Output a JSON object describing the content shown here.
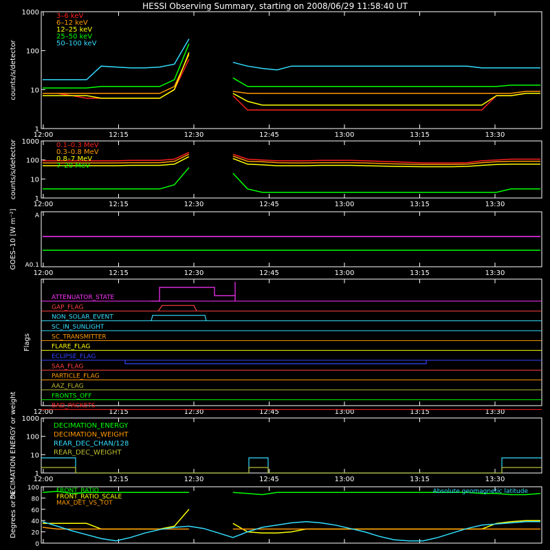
{
  "title": "HESSI Observing Summary, starting on 2008/06/29 11:58:40 UT",
  "time_ticks": [
    "12:00",
    "12:15",
    "12:30",
    "12:45",
    "13:00",
    "13:15",
    "13:30"
  ],
  "chart_data": [
    {
      "type": "line",
      "ylabel": "counts/s/detector",
      "yscale": "log",
      "ylim": [
        1,
        1000
      ],
      "yticks": [
        "1",
        "10",
        "100",
        "1000"
      ],
      "series": [
        {
          "name": "3–6 keV",
          "color": "#ff2020",
          "values": [
            8,
            8,
            7,
            6,
            6,
            6,
            6,
            6,
            6,
            10,
            60,
            0,
            0,
            7,
            3,
            3,
            3,
            3,
            3,
            3,
            3,
            3,
            3,
            3,
            3,
            3,
            3,
            3,
            3,
            3,
            3,
            7,
            7,
            8,
            8
          ]
        },
        {
          "name": "6–12 keV",
          "color": "#ff9900",
          "values": [
            8,
            8,
            8,
            8,
            8,
            8,
            8,
            8,
            8,
            12,
            80,
            0,
            0,
            9,
            8,
            8,
            8,
            8,
            8,
            8,
            8,
            8,
            8,
            8,
            8,
            8,
            8,
            8,
            8,
            8,
            8,
            8,
            8,
            9,
            9
          ]
        },
        {
          "name": "12–25 keV",
          "color": "#ffff00",
          "values": [
            7,
            7,
            7,
            7,
            6,
            6,
            6,
            6,
            6,
            10,
            90,
            0,
            0,
            8,
            5,
            4,
            4,
            4,
            4,
            4,
            4,
            4,
            4,
            4,
            4,
            4,
            4,
            4,
            4,
            4,
            4,
            7,
            7,
            8,
            8
          ]
        },
        {
          "name": "25–50 keV",
          "color": "#00ff00",
          "values": [
            11,
            11,
            11,
            11,
            12,
            12,
            12,
            12,
            12,
            18,
            150,
            0,
            0,
            20,
            12,
            12,
            12,
            12,
            12,
            12,
            12,
            12,
            12,
            12,
            12,
            12,
            12,
            12,
            12,
            12,
            12,
            12,
            13,
            13,
            13
          ]
        },
        {
          "name": "50–100 keV",
          "color": "#33ddff",
          "values": [
            18,
            18,
            18,
            18,
            40,
            38,
            36,
            36,
            38,
            45,
            200,
            0,
            0,
            50,
            40,
            35,
            32,
            40,
            40,
            40,
            40,
            40,
            40,
            40,
            40,
            40,
            40,
            40,
            40,
            40,
            36,
            36,
            36,
            36,
            36
          ]
        }
      ]
    },
    {
      "type": "line",
      "ylabel": "counts/s/detector",
      "yscale": "log",
      "ylim": [
        1,
        1000
      ],
      "yticks": [
        "1",
        "10",
        "100",
        "1000"
      ],
      "series": [
        {
          "name": "0.1–0.3 MeV",
          "color": "#ff2020",
          "values": [
            90,
            90,
            90,
            90,
            90,
            90,
            95,
            95,
            95,
            110,
            250,
            0,
            0,
            200,
            110,
            100,
            90,
            90,
            90,
            95,
            95,
            95,
            90,
            85,
            80,
            75,
            70,
            70,
            70,
            72,
            90,
            100,
            110,
            110,
            110
          ]
        },
        {
          "name": "0.3–0.8 MeV",
          "color": "#ff9900",
          "values": [
            70,
            70,
            70,
            70,
            70,
            70,
            72,
            72,
            72,
            85,
            200,
            0,
            0,
            160,
            85,
            80,
            72,
            70,
            70,
            72,
            72,
            72,
            70,
            65,
            62,
            60,
            58,
            58,
            58,
            60,
            72,
            80,
            85,
            85,
            85
          ]
        },
        {
          "name": "0.8–7 MeV",
          "color": "#ffff00",
          "values": [
            50,
            50,
            50,
            50,
            50,
            50,
            52,
            52,
            52,
            60,
            150,
            0,
            0,
            120,
            60,
            55,
            50,
            50,
            50,
            52,
            52,
            52,
            50,
            48,
            46,
            45,
            44,
            44,
            44,
            46,
            52,
            58,
            60,
            60,
            60
          ]
        },
        {
          "name": "7–20 MeV",
          "color": "#00ff00",
          "values": [
            3,
            3,
            3,
            3,
            3,
            3,
            3,
            3,
            3,
            5,
            40,
            0,
            0,
            20,
            3,
            2,
            2,
            2,
            2,
            2,
            2,
            2,
            2,
            2,
            2,
            2,
            2,
            2,
            2,
            2,
            2,
            2,
            3,
            3,
            3
          ]
        }
      ]
    },
    {
      "type": "line",
      "ylabel": "GOES–10 [W m⁻²]",
      "ytick_top": "A",
      "ytick_bottom": "A0.1",
      "series": [
        {
          "name": "",
          "color": "#ff33ff",
          "values": [
            0.55,
            0.55,
            0.55,
            0.55,
            0.55,
            0.55,
            0.55,
            0.55,
            0.55,
            0.55,
            0.55,
            0.55,
            0.55,
            0.55,
            0.55,
            0.55,
            0.55,
            0.55,
            0.55,
            0.55,
            0.55,
            0.55,
            0.55,
            0.55,
            0.55,
            0.55,
            0.55,
            0.55,
            0.55,
            0.55,
            0.55,
            0.55,
            0.55,
            0.55,
            0.55
          ]
        },
        {
          "name": "",
          "color": "#00ff00",
          "values": [
            0.3,
            0.3,
            0.3,
            0.3,
            0.3,
            0.3,
            0.3,
            0.3,
            0.3,
            0.3,
            0.3,
            0.3,
            0.3,
            0.3,
            0.3,
            0.3,
            0.3,
            0.3,
            0.3,
            0.3,
            0.3,
            0.3,
            0.3,
            0.3,
            0.3,
            0.3,
            0.3,
            0.3,
            0.3,
            0.3,
            0.3,
            0.3,
            0.3,
            0.3,
            0.3
          ]
        }
      ]
    },
    {
      "type": "line",
      "ylabel": "Flags",
      "flags": [
        {
          "name": "ATTENUATOR_STATE",
          "color": "#ff33ff"
        },
        {
          "name": "GAP_FLAG",
          "color": "#ff4040"
        },
        {
          "name": "NON_SOLAR_EVENT",
          "color": "#33ddff"
        },
        {
          "name": "SC_IN_SUNLIGHT",
          "color": "#33ddff"
        },
        {
          "name": "SC_TRANSMITTER",
          "color": "#ff9900"
        },
        {
          "name": "FLARE_FLAG",
          "color": "#ffff00"
        },
        {
          "name": "ECLIPSE_FLAG",
          "color": "#3344ff"
        },
        {
          "name": "SAA_FLAG",
          "color": "#ff4040"
        },
        {
          "name": "PARTICLE_FLAG",
          "color": "#ff9900"
        },
        {
          "name": "AAZ_FLAG",
          "color": "#bbbb33"
        },
        {
          "name": "FRONTS_OFF",
          "color": "#00ff00"
        },
        {
          "name": "BAD_PACKETS",
          "color": "#ff2020"
        }
      ]
    },
    {
      "type": "line",
      "ylabel": "DECIMATION ENERGY or weight",
      "yscale": "log",
      "ylim": [
        1,
        1000
      ],
      "yticks": [
        "1",
        "10",
        "100",
        "1000"
      ],
      "series": [
        {
          "name": "DECIMATION_ENERGY",
          "color": "#00ff00",
          "values": []
        },
        {
          "name": "DECIMATION_WEIGHT",
          "color": "#ff9900",
          "values": []
        },
        {
          "name": "REAR_DEC_CHAN/128",
          "color": "#33ddff",
          "values": []
        },
        {
          "name": "REAR_DEC_WEIGHT",
          "color": "#bbbb33",
          "values": []
        }
      ]
    },
    {
      "type": "line",
      "ylabel": "Degrees or %",
      "ylim": [
        0,
        100
      ],
      "yticks": [
        "0",
        "20",
        "40",
        "60",
        "80",
        "100"
      ],
      "annotation": "Absolute geomagnetic latitude",
      "series": [
        {
          "name": "FRONT_RATIO",
          "color": "#00ff00",
          "values": [
            90,
            92,
            88,
            90,
            90,
            90,
            90,
            90,
            90,
            90,
            90,
            0,
            0,
            90,
            88,
            86,
            90,
            90,
            90,
            90,
            90,
            90,
            90,
            90,
            90,
            90,
            90,
            90,
            90,
            90,
            88,
            88,
            86,
            86,
            88
          ]
        },
        {
          "name": "FRONT_RATIO_SCALE",
          "color": "#ffff00",
          "values": [
            35,
            35,
            35,
            35,
            25,
            25,
            25,
            25,
            25,
            30,
            60,
            0,
            0,
            35,
            20,
            18,
            18,
            20,
            25,
            25,
            25,
            25,
            25,
            25,
            25,
            25,
            25,
            25,
            25,
            25,
            25,
            35,
            38,
            40,
            40
          ]
        },
        {
          "name": "MAX_DET_VS_TOT",
          "color": "#ff9900",
          "values": [
            28,
            25,
            25,
            25,
            25,
            25,
            25,
            25,
            25,
            25,
            25,
            0,
            0,
            25,
            25,
            25,
            25,
            25,
            25,
            25,
            25,
            25,
            25,
            25,
            25,
            25,
            25,
            25,
            25,
            25,
            25,
            25,
            25,
            25,
            25
          ]
        },
        {
          "name": "",
          "color": "#33ddff",
          "values": [
            38,
            30,
            22,
            15,
            8,
            4,
            10,
            18,
            24,
            28,
            30,
            26,
            18,
            10,
            20,
            28,
            32,
            36,
            38,
            36,
            32,
            26,
            20,
            12,
            6,
            4,
            4,
            10,
            18,
            26,
            32,
            34,
            36,
            38,
            38
          ]
        }
      ]
    }
  ]
}
